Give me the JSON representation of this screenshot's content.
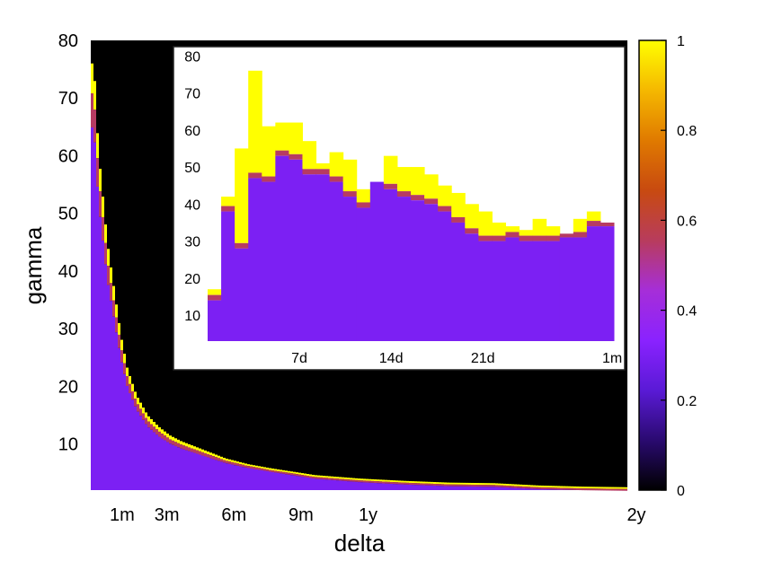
{
  "chart_data": [
    {
      "type": "heatmap",
      "title": "",
      "xlabel": "delta",
      "ylabel": "gamma",
      "ylim": [
        2,
        80
      ],
      "xlim": [
        0,
        24
      ],
      "x_ticks": [
        {
          "value": 1,
          "label": "1m"
        },
        {
          "value": 3,
          "label": "3m"
        },
        {
          "value": 6,
          "label": "6m"
        },
        {
          "value": 9,
          "label": "9m"
        },
        {
          "value": 12,
          "label": "1y"
        },
        {
          "value": 24,
          "label": "2y"
        }
      ],
      "y_ticks": [
        10,
        20,
        30,
        40,
        50,
        60,
        70,
        80
      ],
      "frontier": {
        "delta": [
          0.1,
          0.3,
          0.5,
          0.7,
          1.0,
          1.3,
          1.6,
          2.0,
          2.5,
          3.0,
          3.5,
          4.0,
          5.0,
          6.0,
          7.0,
          8.0,
          9.0,
          10.0,
          11.0,
          12.0,
          14.0,
          16.0,
          18.0,
          19.0,
          20.0,
          22.0,
          24.0
        ],
        "max_gamma": [
          76,
          61,
          53,
          45,
          37,
          29,
          23,
          18.5,
          15,
          13,
          11.5,
          10.5,
          9,
          7.5,
          6.5,
          5.8,
          5.2,
          4.6,
          4.3,
          4.0,
          3.6,
          3.3,
          3.2,
          3.0,
          2.8,
          2.6,
          2.5
        ],
        "band_values": {
          "top": 1.0,
          "edge": 0.55,
          "body": 0.3
        }
      }
    },
    {
      "type": "heatmap",
      "title": "",
      "inset": true,
      "ylim": [
        3,
        82
      ],
      "xlim": [
        0,
        31
      ],
      "x_ticks": [
        {
          "value": 7,
          "label": "7d"
        },
        {
          "value": 14,
          "label": "14d"
        },
        {
          "value": 21,
          "label": "21d"
        },
        {
          "value": 31,
          "label": "1m"
        }
      ],
      "y_ticks": [
        10,
        20,
        30,
        40,
        50,
        60,
        70,
        80
      ],
      "columns": {
        "delta_days": [
          1,
          2,
          3,
          4,
          5,
          6,
          7,
          8,
          9,
          10,
          11,
          12,
          13,
          14,
          15,
          16,
          17,
          18,
          19,
          20,
          21,
          22,
          23,
          24,
          25,
          26,
          27,
          28,
          29,
          30
        ],
        "max_gamma": [
          17,
          42,
          55,
          76,
          61,
          62,
          62,
          57,
          51,
          54,
          52,
          44,
          46,
          53,
          50,
          50,
          48,
          45,
          43,
          40,
          38,
          35,
          34,
          33,
          36,
          34,
          32,
          36,
          38,
          35
        ],
        "body_top": [
          14,
          38,
          28,
          47,
          46,
          53,
          52,
          48,
          48,
          46,
          42,
          39,
          46,
          44,
          42,
          41,
          40,
          38,
          35,
          32,
          30,
          30,
          31,
          30,
          30,
          30,
          31,
          31,
          34,
          34
        ]
      },
      "band_values": {
        "top": 1.0,
        "edge": 0.55,
        "body": 0.3
      }
    },
    {
      "type": "colorbar",
      "range": [
        0,
        1
      ],
      "ticks": [
        {
          "value": 0,
          "label": "0"
        },
        {
          "value": 0.2,
          "label": "0.2"
        },
        {
          "value": 0.4,
          "label": "0.4"
        },
        {
          "value": 0.6,
          "label": "0.6"
        },
        {
          "value": 0.8,
          "label": "0.8"
        },
        {
          "value": 1,
          "label": "1"
        }
      ],
      "colors": [
        "#000000",
        "#2a0a70",
        "#5a1ad6",
        "#8a22ff",
        "#a62ed8",
        "#b83c5c",
        "#c84a10",
        "#e07a00",
        "#f5b800",
        "#ffff00"
      ]
    }
  ]
}
